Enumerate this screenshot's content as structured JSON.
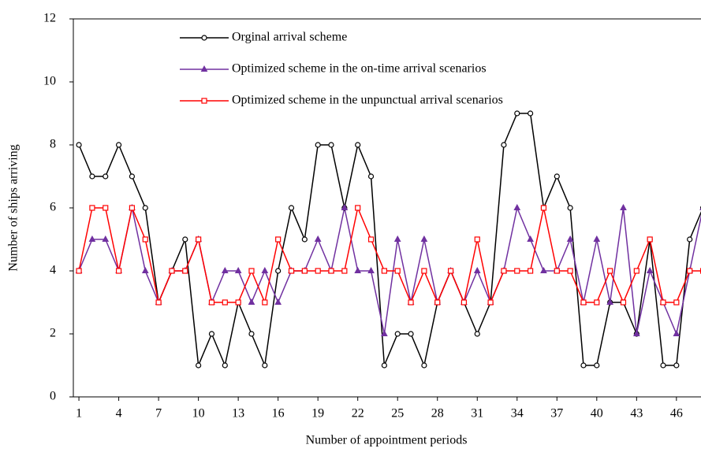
{
  "chart_data": {
    "type": "line",
    "xlabel": "Number of appointment periods",
    "ylabel": "Number of ships arriving",
    "x": [
      1,
      2,
      3,
      4,
      5,
      6,
      7,
      8,
      9,
      10,
      11,
      12,
      13,
      14,
      15,
      16,
      17,
      18,
      19,
      20,
      21,
      22,
      23,
      24,
      25,
      26,
      27,
      28,
      29,
      30,
      31,
      32,
      33,
      34,
      35,
      36,
      37,
      38,
      39,
      40,
      41,
      42,
      43,
      44,
      45,
      46,
      47,
      48
    ],
    "series": [
      {
        "name": "Orginal arrival scheme",
        "color": "#000000",
        "marker": "circle",
        "values": [
          8,
          7,
          7,
          8,
          7,
          6,
          3,
          4,
          5,
          1,
          2,
          1,
          3,
          2,
          1,
          4,
          6,
          5,
          8,
          8,
          6,
          8,
          7,
          1,
          2,
          2,
          1,
          3,
          4,
          3,
          2,
          3,
          8,
          9,
          9,
          6,
          7,
          6,
          1,
          1,
          3,
          3,
          2,
          5,
          1,
          1,
          5,
          6
        ]
      },
      {
        "name": "Optimized scheme in the on-time arrival scenarios",
        "color": "#7030a0",
        "marker": "triangle",
        "values": [
          4,
          5,
          5,
          4,
          6,
          4,
          3,
          4,
          4,
          5,
          3,
          4,
          4,
          3,
          4,
          3,
          4,
          4,
          5,
          4,
          6,
          4,
          4,
          2,
          5,
          3,
          5,
          3,
          4,
          3,
          4,
          3,
          4,
          6,
          5,
          4,
          4,
          5,
          3,
          5,
          3,
          6,
          2,
          4,
          3,
          2,
          4,
          6
        ]
      },
      {
        "name": "Optimized scheme in the unpunctual arrival scenarios",
        "color": "#ff0000",
        "marker": "square",
        "values": [
          4,
          6,
          6,
          4,
          6,
          5,
          3,
          4,
          4,
          5,
          3,
          3,
          3,
          4,
          3,
          5,
          4,
          4,
          4,
          4,
          4,
          6,
          5,
          4,
          4,
          3,
          4,
          3,
          4,
          3,
          5,
          3,
          4,
          4,
          4,
          6,
          4,
          4,
          3,
          3,
          4,
          3,
          4,
          5,
          3,
          3,
          4,
          4
        ]
      }
    ],
    "xlim": [
      0.58,
      47.85
    ],
    "xticks": [
      1,
      4,
      7,
      10,
      13,
      16,
      19,
      22,
      25,
      28,
      31,
      34,
      37,
      40,
      43,
      46
    ],
    "ylim": [
      0,
      12
    ],
    "yticks": [
      0,
      2,
      4,
      6,
      8,
      10,
      12
    ],
    "legend": "upper-left"
  }
}
